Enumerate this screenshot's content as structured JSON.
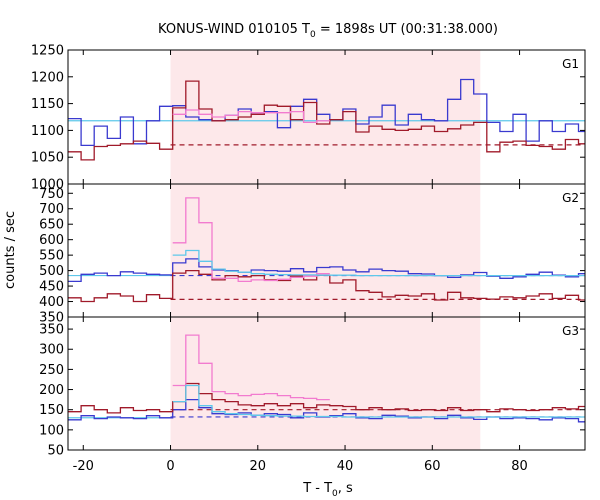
{
  "chart_data": {
    "type": "line",
    "title": "KONUS-WIND 010105 T",
    "title_subscript": "0",
    "title_suffix": " = 1898s UT (00:31:38.000)",
    "xlabel": "T - T",
    "xlabel_subscript": "0",
    "xlabel_suffix": ", s",
    "ylabel": "counts / sec",
    "xlim": [
      -23.5,
      95
    ],
    "x_ticks": [
      -20,
      0,
      20,
      40,
      60,
      80
    ],
    "highlight_interval": [
      0,
      71
    ],
    "colors": {
      "highlight": "#fde8ea",
      "blue": "#3a3acf",
      "red": "#a01a2a",
      "pink": "#f27bcf",
      "cyan": "#5ec8ea"
    },
    "panels": [
      {
        "label": "G1",
        "ylim": [
          1000,
          1250
        ],
        "y_ticks": [
          1000,
          1050,
          1100,
          1150,
          1200,
          1250
        ],
        "bin_edges": [
          -23.5,
          -20.5,
          -17.5,
          -14.5,
          -11.5,
          -8.5,
          -5.5,
          -2.5,
          0.5,
          3.5,
          6.5,
          9.5,
          12.5,
          15.5,
          18.5,
          21.5,
          24.5,
          27.5,
          30.5,
          33.5,
          36.5,
          39.5,
          42.5,
          45.5,
          48.5,
          51.5,
          54.5,
          57.5,
          60.5,
          63.5,
          66.5,
          69.5,
          72.5,
          75.5,
          78.5,
          81.5,
          84.5,
          87.5,
          90.5,
          93.5,
          95
        ],
        "series": [
          {
            "color_key": "blue",
            "values": [
              1122,
              1072,
              1108,
              1085,
              1125,
              1075,
              1118,
              1145,
              1146,
              1125,
              1120,
              1118,
              1128,
              1140,
              1130,
              1135,
              1105,
              1145,
              1158,
              1130,
              1120,
              1140,
              1112,
              1125,
              1147,
              1110,
              1130,
              1120,
              1118,
              1158,
              1195,
              1168,
              1115,
              1098,
              1130,
              1080,
              1118,
              1098,
              1112,
              1098
            ]
          },
          {
            "color_key": "red",
            "values": [
              1060,
              1045,
              1070,
              1072,
              1075,
              1080,
              1076,
              1065,
              1142,
              1192,
              1140,
              1118,
              1120,
              1125,
              1130,
              1147,
              1145,
              1120,
              1152,
              1112,
              1120,
              1135,
              1097,
              1108,
              1102,
              1100,
              1102,
              1108,
              1098,
              1103,
              1110,
              1115,
              1060,
              1078,
              1080,
              1072,
              1070,
              1065,
              1083,
              1075
            ]
          },
          {
            "color_key": "pink",
            "values": [
              null,
              null,
              null,
              null,
              null,
              null,
              null,
              null,
              1130,
              1138,
              1130,
              1125,
              1128,
              1135,
              1133,
              1133,
              1133,
              1135,
              1115,
              1118,
              null,
              null,
              null,
              null,
              null,
              null,
              null,
              null,
              null,
              null,
              null,
              null,
              null,
              null,
              null,
              null,
              null,
              null,
              null,
              null
            ]
          }
        ],
        "levels": [
          {
            "color_key": "cyan",
            "value": 1118,
            "style": "solid"
          },
          {
            "color_key": "red",
            "value": 1073,
            "style": "dashed",
            "from": 0
          }
        ]
      },
      {
        "label": "G2",
        "ylim": [
          350,
          780
        ],
        "y_ticks": [
          350,
          400,
          450,
          500,
          550,
          600,
          650,
          700,
          750
        ],
        "bin_edges": [
          -23.5,
          -20.5,
          -17.5,
          -14.5,
          -11.5,
          -8.5,
          -5.5,
          -2.5,
          0.5,
          3.5,
          6.5,
          9.5,
          12.5,
          15.5,
          18.5,
          21.5,
          24.5,
          27.5,
          30.5,
          33.5,
          36.5,
          39.5,
          42.5,
          45.5,
          48.5,
          51.5,
          54.5,
          57.5,
          60.5,
          63.5,
          66.5,
          69.5,
          72.5,
          75.5,
          78.5,
          81.5,
          84.5,
          87.5,
          90.5,
          93.5,
          95
        ],
        "series": [
          {
            "color_key": "blue",
            "values": [
              465,
              488,
              492,
              484,
              496,
              492,
              488,
              486,
              525,
              538,
              512,
              502,
              500,
              495,
              502,
              500,
              498,
              506,
              496,
              510,
              512,
              502,
              496,
              505,
              500,
              498,
              490,
              489,
              484,
              478,
              486,
              494,
              482,
              475,
              480,
              488,
              495,
              485,
              480,
              490
            ]
          },
          {
            "color_key": "red",
            "values": [
              412,
              400,
              412,
              425,
              418,
              400,
              422,
              410,
              492,
              500,
              488,
              470,
              484,
              480,
              484,
              470,
              468,
              482,
              470,
              485,
              460,
              470,
              435,
              430,
              415,
              420,
              418,
              425,
              405,
              430,
              412,
              410,
              408,
              415,
              412,
              418,
              425,
              410,
              420,
              405
            ]
          },
          {
            "color_key": "pink",
            "values": [
              null,
              null,
              null,
              null,
              null,
              null,
              null,
              null,
              590,
              735,
              655,
              475,
              475,
              465,
              470,
              468,
              472,
              478,
              482,
              490,
              null,
              null,
              null,
              null,
              null,
              null,
              null,
              null,
              null,
              null,
              null,
              null,
              null,
              null,
              null,
              null,
              null,
              null,
              null,
              null
            ]
          },
          {
            "color_key": "cyan",
            "values": [
              null,
              null,
              null,
              null,
              null,
              null,
              null,
              null,
              550,
              565,
              530,
              505,
              498,
              495,
              490,
              488,
              487,
              486,
              486,
              485,
              485,
              485,
              484,
              484,
              484,
              484,
              484,
              484,
              484,
              484,
              484,
              484,
              484,
              484,
              484,
              484,
              484,
              484,
              484,
              484
            ]
          }
        ],
        "levels": [
          {
            "color_key": "cyan",
            "value": 484,
            "style": "solid",
            "to": 0
          },
          {
            "color_key": "blue",
            "value": 484,
            "style": "dashed",
            "from": 0
          },
          {
            "color_key": "red",
            "value": 407,
            "style": "dashed",
            "from": 0
          }
        ]
      },
      {
        "label": "G3",
        "ylim": [
          50,
          380
        ],
        "y_ticks": [
          50,
          100,
          150,
          200,
          250,
          300,
          350
        ],
        "bin_edges": [
          -23.5,
          -20.5,
          -17.5,
          -14.5,
          -11.5,
          -8.5,
          -5.5,
          -2.5,
          0.5,
          3.5,
          6.5,
          9.5,
          12.5,
          15.5,
          18.5,
          21.5,
          24.5,
          27.5,
          30.5,
          33.5,
          36.5,
          39.5,
          42.5,
          45.5,
          48.5,
          51.5,
          54.5,
          57.5,
          60.5,
          63.5,
          66.5,
          69.5,
          72.5,
          75.5,
          78.5,
          81.5,
          84.5,
          87.5,
          90.5,
          93.5,
          95
        ],
        "series": [
          {
            "color_key": "blue",
            "values": [
              125,
              135,
              128,
              132,
              130,
              128,
              135,
              130,
              150,
              175,
              155,
              140,
              138,
              142,
              136,
              140,
              138,
              130,
              142,
              132,
              135,
              140,
              130,
              128,
              136,
              134,
              130,
              132,
              128,
              136,
              130,
              126,
              132,
              128,
              130,
              128,
              125,
              130,
              128,
              120
            ]
          },
          {
            "color_key": "red",
            "values": [
              145,
              160,
              150,
              142,
              155,
              148,
              150,
              145,
              170,
              215,
              190,
              175,
              170,
              162,
              160,
              165,
              160,
              165,
              155,
              162,
              160,
              158,
              150,
              155,
              150,
              152,
              148,
              150,
              148,
              155,
              148,
              150,
              145,
              152,
              150,
              148,
              150,
              155,
              152,
              158
            ]
          },
          {
            "color_key": "pink",
            "values": [
              null,
              null,
              null,
              null,
              null,
              null,
              null,
              null,
              210,
              335,
              265,
              195,
              190,
              185,
              188,
              190,
              185,
              180,
              178,
              175,
              null,
              null,
              null,
              null,
              null,
              null,
              null,
              null,
              null,
              null,
              null,
              null,
              null,
              null,
              null,
              null,
              null,
              null,
              null,
              null
            ]
          },
          {
            "color_key": "cyan",
            "values": [
              null,
              null,
              null,
              null,
              null,
              null,
              null,
              null,
              170,
              210,
              160,
              145,
              140,
              138,
              136,
              135,
              134,
              134,
              133,
              133,
              133,
              132,
              132,
              132,
              132,
              132,
              132,
              132,
              132,
              132,
              132,
              132,
              132,
              132,
              132,
              132,
              132,
              132,
              132,
              132
            ]
          }
        ],
        "levels": [
          {
            "color_key": "cyan",
            "value": 130,
            "style": "solid",
            "to": 0
          },
          {
            "color_key": "red",
            "value": 150,
            "style": "dashed",
            "from": 0
          },
          {
            "color_key": "blue",
            "value": 132,
            "style": "dashed",
            "from": 0
          }
        ]
      }
    ]
  }
}
